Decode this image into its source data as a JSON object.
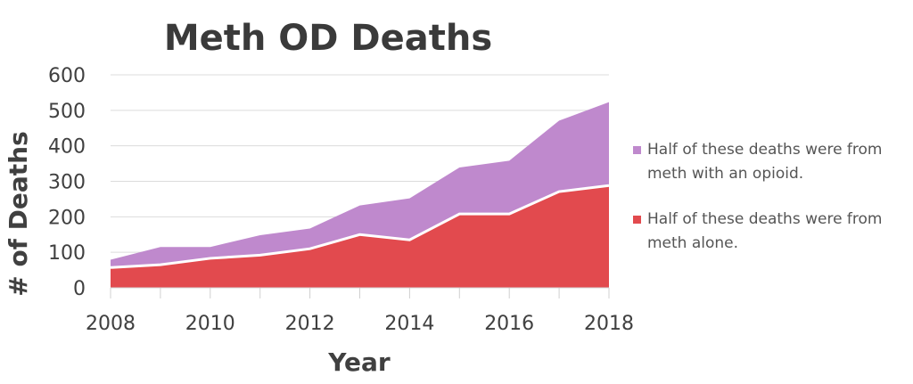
{
  "chart_data": {
    "type": "area",
    "stacked": true,
    "title": "Meth OD Deaths",
    "xlabel": "Year",
    "ylabel": "# of Deaths",
    "x": [
      2008,
      2009,
      2010,
      2011,
      2012,
      2013,
      2014,
      2015,
      2016,
      2017,
      2018
    ],
    "x_tick_labels": [
      "2008",
      "2010",
      "2012",
      "2014",
      "2016",
      "2018"
    ],
    "y_tick_labels": [
      "0",
      "100",
      "200",
      "300",
      "400",
      "500",
      "600"
    ],
    "ylim": [
      0,
      600
    ],
    "xlim": [
      2008,
      2018
    ],
    "grid": true,
    "legend_position": "right",
    "series": [
      {
        "name": "Half of these deaths were from meth alone.",
        "name_lines": [
          "Half of these deaths were from",
          "meth alone."
        ],
        "color": "#e24a4e",
        "values": [
          57,
          65,
          83,
          92,
          110,
          150,
          135,
          208,
          208,
          271,
          288
        ]
      },
      {
        "name": "Half of these deaths were from meth with an opioid.",
        "name_lines": [
          "Half of these deaths were from",
          "meth with an opioid."
        ],
        "color": "#bf89cd",
        "values": [
          22,
          50,
          32,
          56,
          57,
          82,
          117,
          131,
          150,
          200,
          235
        ]
      }
    ]
  }
}
